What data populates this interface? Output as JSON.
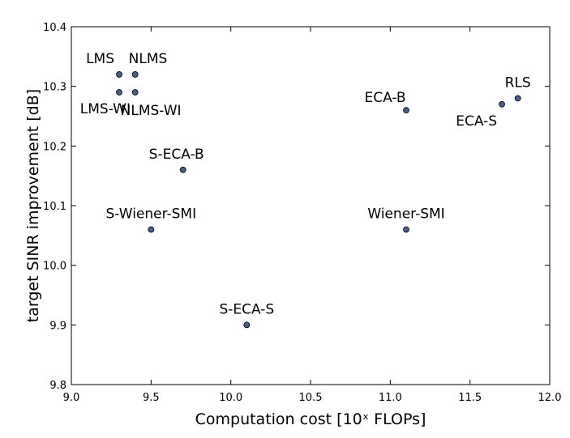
{
  "chart_data": {
    "type": "scatter",
    "xlabel": "Computation cost [10ˣ FLOPs]",
    "ylabel": "target SINR improvement [dB]",
    "xlim": [
      9.0,
      12.0
    ],
    "ylim": [
      9.8,
      10.4
    ],
    "xticks": [
      "9.0",
      "9.5",
      "10.0",
      "10.5",
      "11.0",
      "11.5",
      "12.0"
    ],
    "yticks": [
      "9.8",
      "9.9",
      "10.0",
      "10.1",
      "10.2",
      "10.3",
      "10.4"
    ],
    "grid": false,
    "marker_color": "#4a5d8a",
    "points": [
      {
        "label": "LMS",
        "x": 9.3,
        "y": 10.32
      },
      {
        "label": "NLMS",
        "x": 9.4,
        "y": 10.32
      },
      {
        "label": "LMS-WI",
        "x": 9.3,
        "y": 10.29
      },
      {
        "label": "NLMS-WI",
        "x": 9.4,
        "y": 10.29
      },
      {
        "label": "S-ECA-B",
        "x": 9.7,
        "y": 10.16
      },
      {
        "label": "S-Wiener-SMI",
        "x": 9.5,
        "y": 10.06
      },
      {
        "label": "S-ECA-S",
        "x": 10.1,
        "y": 9.9
      },
      {
        "label": "ECA-B",
        "x": 11.1,
        "y": 10.26
      },
      {
        "label": "Wiener-SMI",
        "x": 11.1,
        "y": 10.06
      },
      {
        "label": "ECA-S",
        "x": 11.7,
        "y": 10.27
      },
      {
        "label": "RLS",
        "x": 11.8,
        "y": 10.28
      }
    ]
  }
}
